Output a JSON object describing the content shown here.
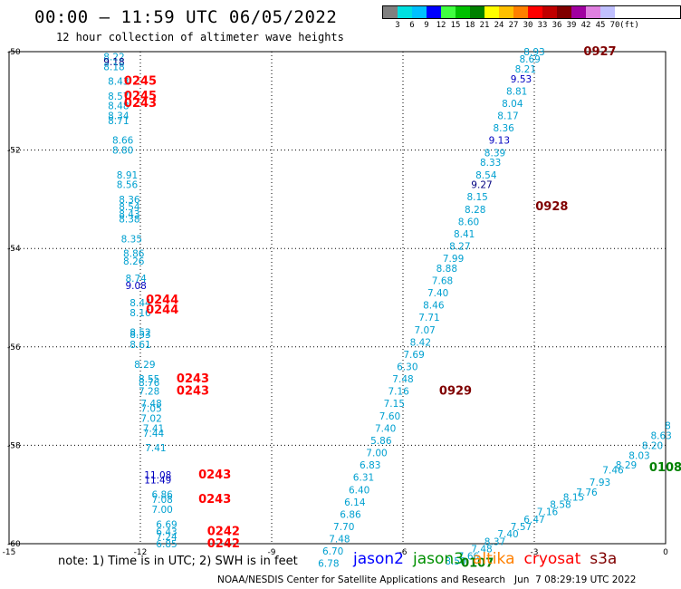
{
  "title": "00:00 – 11:59 UTC 06/05/2022",
  "subtitle": "12 hour collection of altimeter wave heights",
  "legend": {
    "unit": "(ft)",
    "colors": [
      "#808080",
      "#00e0e0",
      "#00c0ff",
      "#0000ff",
      "#40ff40",
      "#00c000",
      "#008000",
      "#ffff00",
      "#ffc000",
      "#ff8000",
      "#ff0000",
      "#c00000",
      "#800000",
      "#a000a0",
      "#e080e0",
      "#c0c0ff",
      "#ffffff"
    ],
    "labels": [
      "3",
      "6",
      "9",
      "12",
      "15",
      "18",
      "21",
      "24",
      "27",
      "30",
      "33",
      "36",
      "39",
      "42",
      "45",
      "70"
    ]
  },
  "note": "note: 1) Time is in UTC; 2) SWH is in feet",
  "satellites": [
    {
      "name": "jason2",
      "color": "#0000ff"
    },
    {
      "name": "jason3",
      "color": "#009000"
    },
    {
      "name": "altika",
      "color": "#ff8000"
    },
    {
      "name": "cryosat",
      "color": "#ff0000"
    },
    {
      "name": "s3a",
      "color": "#800000"
    }
  ],
  "credit": "NOAA/NESDIS Center for Satellite Applications and Research   Jun  7 08:29:19 UTC 2022",
  "colors": {
    "cyan": "#00a0d0",
    "blue": "#0000c0",
    "navy": "#000080",
    "red": "#ff0000",
    "maroon": "#800000",
    "green": "#008000"
  },
  "chart_data": {
    "type": "scatter",
    "xlim": [
      -15,
      0
    ],
    "ylim": [
      -60,
      -50
    ],
    "xticks": [
      -15,
      -12,
      -9,
      -6,
      -3,
      0
    ],
    "yticks": [
      -50,
      -52,
      -54,
      -56,
      -58,
      -60
    ],
    "grid": true,
    "points": [
      {
        "x": -12.6,
        "y": -50.1,
        "label": "8.22",
        "c": "cyan"
      },
      {
        "x": -12.6,
        "y": -50.2,
        "label": "9.18",
        "c": "navy"
      },
      {
        "x": -12.6,
        "y": -50.3,
        "label": "8.18",
        "c": "cyan"
      },
      {
        "x": -12.5,
        "y": -50.6,
        "label": "8.43",
        "c": "cyan"
      },
      {
        "x": -12.5,
        "y": -50.9,
        "label": "8.57",
        "c": "cyan"
      },
      {
        "x": -12.5,
        "y": -51.1,
        "label": "8.48",
        "c": "cyan"
      },
      {
        "x": -12.5,
        "y": -51.3,
        "label": "8.34",
        "c": "cyan"
      },
      {
        "x": -12.5,
        "y": -51.4,
        "label": "8.71",
        "c": "cyan"
      },
      {
        "x": -12.4,
        "y": -51.8,
        "label": "8.66",
        "c": "cyan"
      },
      {
        "x": -12.4,
        "y": -52.0,
        "label": "8.80",
        "c": "cyan"
      },
      {
        "x": -12.3,
        "y": -52.5,
        "label": "8.91",
        "c": "cyan"
      },
      {
        "x": -12.3,
        "y": -52.7,
        "label": "8.56",
        "c": "cyan"
      },
      {
        "x": -12.25,
        "y": -53.0,
        "label": "8.36",
        "c": "cyan"
      },
      {
        "x": -12.25,
        "y": -53.15,
        "label": "8.54",
        "c": "cyan"
      },
      {
        "x": -12.25,
        "y": -53.3,
        "label": "8.43",
        "c": "cyan"
      },
      {
        "x": -12.25,
        "y": -53.4,
        "label": "8.38",
        "c": "cyan"
      },
      {
        "x": -12.2,
        "y": -53.8,
        "label": "8.35",
        "c": "cyan"
      },
      {
        "x": -12.15,
        "y": -54.1,
        "label": "8.86",
        "c": "cyan"
      },
      {
        "x": -12.15,
        "y": -54.25,
        "label": "8.26",
        "c": "cyan"
      },
      {
        "x": -12.1,
        "y": -54.6,
        "label": "8.74",
        "c": "cyan"
      },
      {
        "x": -12.1,
        "y": -54.75,
        "label": "9.08",
        "c": "blue"
      },
      {
        "x": -12.0,
        "y": -55.1,
        "label": "8.44",
        "c": "cyan"
      },
      {
        "x": -12.0,
        "y": -55.3,
        "label": "8.16",
        "c": "cyan"
      },
      {
        "x": -12.0,
        "y": -55.7,
        "label": "8.52",
        "c": "cyan"
      },
      {
        "x": -12.0,
        "y": -55.75,
        "label": "8.53",
        "c": "cyan"
      },
      {
        "x": -12.0,
        "y": -55.95,
        "label": "8.61",
        "c": "cyan"
      },
      {
        "x": -11.9,
        "y": -56.35,
        "label": "8.29",
        "c": "cyan"
      },
      {
        "x": -11.8,
        "y": -56.65,
        "label": "8.55",
        "c": "cyan"
      },
      {
        "x": -11.8,
        "y": -56.72,
        "label": "8.76",
        "c": "cyan"
      },
      {
        "x": -11.8,
        "y": -56.9,
        "label": "7.28",
        "c": "cyan"
      },
      {
        "x": -11.75,
        "y": -57.15,
        "label": "7.48",
        "c": "cyan"
      },
      {
        "x": -11.75,
        "y": -57.25,
        "label": "7.05",
        "c": "cyan"
      },
      {
        "x": -11.75,
        "y": -57.45,
        "label": "7.02",
        "c": "cyan"
      },
      {
        "x": -11.7,
        "y": -57.65,
        "label": "7.41",
        "c": "cyan"
      },
      {
        "x": -11.7,
        "y": -57.75,
        "label": "7.44",
        "c": "cyan"
      },
      {
        "x": -11.65,
        "y": -58.05,
        "label": "7.41",
        "c": "cyan"
      },
      {
        "x": -11.6,
        "y": -58.6,
        "label": "11.08",
        "c": "blue"
      },
      {
        "x": -11.6,
        "y": -58.7,
        "label": "11.49",
        "c": "blue"
      },
      {
        "x": -11.5,
        "y": -59.0,
        "label": "6.86",
        "c": "cyan"
      },
      {
        "x": -11.5,
        "y": -59.1,
        "label": "7.08",
        "c": "cyan"
      },
      {
        "x": -11.5,
        "y": -59.3,
        "label": "7.00",
        "c": "cyan"
      },
      {
        "x": -11.4,
        "y": -59.6,
        "label": "6.69",
        "c": "cyan"
      },
      {
        "x": -11.4,
        "y": -59.75,
        "label": "6.43",
        "c": "cyan"
      },
      {
        "x": -11.4,
        "y": -59.85,
        "label": "7.24",
        "c": "cyan"
      },
      {
        "x": -11.4,
        "y": -60.0,
        "label": "6.85",
        "c": "cyan"
      },
      {
        "x": -12.0,
        "y": -50.6,
        "label": "0245",
        "c": "red"
      },
      {
        "x": -12.0,
        "y": -50.9,
        "label": "0245",
        "c": "red"
      },
      {
        "x": -12.0,
        "y": -51.05,
        "label": "0243",
        "c": "red"
      },
      {
        "x": -11.5,
        "y": -55.05,
        "label": "0244",
        "c": "red"
      },
      {
        "x": -11.5,
        "y": -55.25,
        "label": "0244",
        "c": "red"
      },
      {
        "x": -10.8,
        "y": -56.65,
        "label": "0243",
        "c": "red"
      },
      {
        "x": -10.8,
        "y": -56.9,
        "label": "0243",
        "c": "red"
      },
      {
        "x": -10.3,
        "y": -58.6,
        "label": "0243",
        "c": "red"
      },
      {
        "x": -10.3,
        "y": -59.1,
        "label": "0243",
        "c": "red"
      },
      {
        "x": -10.1,
        "y": -59.75,
        "label": "0242",
        "c": "red"
      },
      {
        "x": -10.1,
        "y": -60.0,
        "label": "0242",
        "c": "red"
      },
      {
        "x": -3.0,
        "y": -50.0,
        "label": "8.93",
        "c": "cyan"
      },
      {
        "x": -3.1,
        "y": -50.15,
        "label": "8.69",
        "c": "cyan"
      },
      {
        "x": -3.2,
        "y": -50.35,
        "label": "8.21",
        "c": "cyan"
      },
      {
        "x": -3.3,
        "y": -50.55,
        "label": "9.53",
        "c": "blue"
      },
      {
        "x": -3.4,
        "y": -50.8,
        "label": "8.81",
        "c": "cyan"
      },
      {
        "x": -3.5,
        "y": -51.05,
        "label": "8.04",
        "c": "cyan"
      },
      {
        "x": -3.6,
        "y": -51.3,
        "label": "8.17",
        "c": "cyan"
      },
      {
        "x": -3.7,
        "y": -51.55,
        "label": "8.36",
        "c": "cyan"
      },
      {
        "x": -3.8,
        "y": -51.8,
        "label": "9.13",
        "c": "blue"
      },
      {
        "x": -3.9,
        "y": -52.05,
        "label": "8.39",
        "c": "cyan"
      },
      {
        "x": -4.0,
        "y": -52.25,
        "label": "8.33",
        "c": "cyan"
      },
      {
        "x": -4.1,
        "y": -52.5,
        "label": "8.54",
        "c": "cyan"
      },
      {
        "x": -4.2,
        "y": -52.7,
        "label": "9.27",
        "c": "navy"
      },
      {
        "x": -4.3,
        "y": -52.95,
        "label": "8.15",
        "c": "cyan"
      },
      {
        "x": -4.35,
        "y": -53.2,
        "label": "8.28",
        "c": "cyan"
      },
      {
        "x": -4.5,
        "y": -53.45,
        "label": "8.60",
        "c": "cyan"
      },
      {
        "x": -4.6,
        "y": -53.7,
        "label": "8.41",
        "c": "cyan"
      },
      {
        "x": -4.7,
        "y": -53.95,
        "label": "8.27",
        "c": "cyan"
      },
      {
        "x": -4.85,
        "y": -54.2,
        "label": "7.99",
        "c": "cyan"
      },
      {
        "x": -5.0,
        "y": -54.4,
        "label": "8.88",
        "c": "cyan"
      },
      {
        "x": -5.1,
        "y": -54.65,
        "label": "7.68",
        "c": "cyan"
      },
      {
        "x": -5.2,
        "y": -54.9,
        "label": "7.40",
        "c": "cyan"
      },
      {
        "x": -5.3,
        "y": -55.15,
        "label": "8.46",
        "c": "cyan"
      },
      {
        "x": -5.4,
        "y": -55.4,
        "label": "7.71",
        "c": "cyan"
      },
      {
        "x": -5.5,
        "y": -55.65,
        "label": "7.07",
        "c": "cyan"
      },
      {
        "x": -5.6,
        "y": -55.9,
        "label": "8.42",
        "c": "cyan"
      },
      {
        "x": -5.75,
        "y": -56.15,
        "label": "7.69",
        "c": "cyan"
      },
      {
        "x": -5.9,
        "y": -56.4,
        "label": "6.30",
        "c": "cyan"
      },
      {
        "x": -6.0,
        "y": -56.65,
        "label": "7.48",
        "c": "cyan"
      },
      {
        "x": -6.1,
        "y": -56.9,
        "label": "7.16",
        "c": "cyan"
      },
      {
        "x": -6.2,
        "y": -57.15,
        "label": "7.15",
        "c": "cyan"
      },
      {
        "x": -6.3,
        "y": -57.4,
        "label": "7.60",
        "c": "cyan"
      },
      {
        "x": -6.4,
        "y": -57.65,
        "label": "7.40",
        "c": "cyan"
      },
      {
        "x": -6.5,
        "y": -57.9,
        "label": "5.86",
        "c": "cyan"
      },
      {
        "x": -6.6,
        "y": -58.15,
        "label": "7.00",
        "c": "cyan"
      },
      {
        "x": -6.75,
        "y": -58.4,
        "label": "6.83",
        "c": "cyan"
      },
      {
        "x": -6.9,
        "y": -58.65,
        "label": "6.31",
        "c": "cyan"
      },
      {
        "x": -7.0,
        "y": -58.9,
        "label": "6.40",
        "c": "cyan"
      },
      {
        "x": -7.1,
        "y": -59.15,
        "label": "6.14",
        "c": "cyan"
      },
      {
        "x": -7.2,
        "y": -59.4,
        "label": "6.86",
        "c": "cyan"
      },
      {
        "x": -7.35,
        "y": -59.65,
        "label": "7.70",
        "c": "cyan"
      },
      {
        "x": -7.45,
        "y": -59.9,
        "label": "7.48",
        "c": "cyan"
      },
      {
        "x": -7.6,
        "y": -60.15,
        "label": "6.70",
        "c": "cyan"
      },
      {
        "x": -7.7,
        "y": -60.4,
        "label": "6.78",
        "c": "cyan"
      },
      {
        "x": -1.5,
        "y": -50.0,
        "label": "0927",
        "c": "maroon"
      },
      {
        "x": -2.6,
        "y": -53.15,
        "label": "0928",
        "c": "maroon"
      },
      {
        "x": -4.8,
        "y": -56.9,
        "label": "0929",
        "c": "maroon"
      },
      {
        "x": 0.05,
        "y": -57.6,
        "label": "8",
        "c": "cyan"
      },
      {
        "x": -0.1,
        "y": -57.8,
        "label": "8.63",
        "c": "cyan"
      },
      {
        "x": -0.3,
        "y": -58.0,
        "label": "8.20",
        "c": "cyan"
      },
      {
        "x": -0.6,
        "y": -58.2,
        "label": "8.03",
        "c": "cyan"
      },
      {
        "x": -0.9,
        "y": -58.4,
        "label": "8.29",
        "c": "cyan"
      },
      {
        "x": -1.2,
        "y": -58.5,
        "label": "7.46",
        "c": "cyan"
      },
      {
        "x": -1.5,
        "y": -58.75,
        "label": "7.93",
        "c": "cyan"
      },
      {
        "x": -1.8,
        "y": -58.95,
        "label": "7.76",
        "c": "cyan"
      },
      {
        "x": -2.1,
        "y": -59.05,
        "label": "8.15",
        "c": "cyan"
      },
      {
        "x": -2.4,
        "y": -59.2,
        "label": "8.58",
        "c": "cyan"
      },
      {
        "x": -2.7,
        "y": -59.35,
        "label": "7.16",
        "c": "cyan"
      },
      {
        "x": -3.0,
        "y": -59.5,
        "label": "6.47",
        "c": "cyan"
      },
      {
        "x": -3.3,
        "y": -59.65,
        "label": "7.57",
        "c": "cyan"
      },
      {
        "x": -3.6,
        "y": -59.8,
        "label": "7.40",
        "c": "cyan"
      },
      {
        "x": -3.9,
        "y": -59.95,
        "label": "8.37",
        "c": "cyan"
      },
      {
        "x": -4.2,
        "y": -60.1,
        "label": "7.48",
        "c": "cyan"
      },
      {
        "x": -4.5,
        "y": -60.25,
        "label": "7.66",
        "c": "cyan"
      },
      {
        "x": -4.8,
        "y": -60.35,
        "label": "8.50",
        "c": "cyan"
      },
      {
        "x": 0.0,
        "y": -58.45,
        "label": "0108",
        "c": "green"
      },
      {
        "x": -4.3,
        "y": -60.4,
        "label": "0107",
        "c": "green"
      }
    ]
  }
}
